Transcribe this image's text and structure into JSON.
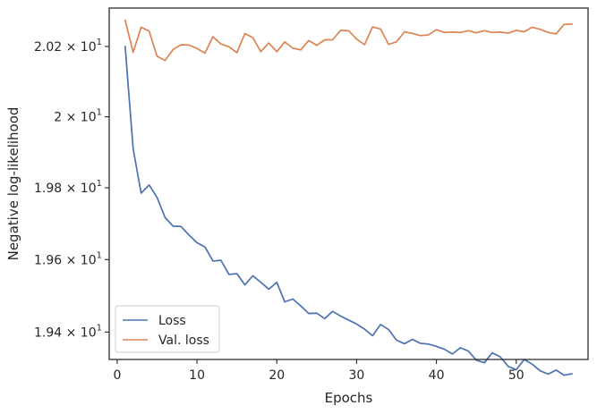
{
  "chart_data": {
    "type": "line",
    "xlabel": "Epochs",
    "ylabel": "Negative log-likelihood",
    "xlim": [
      -1,
      59
    ],
    "ylim": [
      19.325,
      20.31
    ],
    "yscale": "log",
    "grid": false,
    "legend_position": "lower-left",
    "x_ticks": [
      0,
      10,
      20,
      30,
      40,
      50
    ],
    "y_ticks": [
      {
        "value": 19.4,
        "mantissa": "1.94",
        "base": "10",
        "exp": "1"
      },
      {
        "value": 19.6,
        "mantissa": "1.96",
        "base": "10",
        "exp": "1"
      },
      {
        "value": 19.8,
        "mantissa": "1.98",
        "base": "10",
        "exp": "1"
      },
      {
        "value": 20.0,
        "mantissa": "2",
        "base": "10",
        "exp": "1"
      },
      {
        "value": 20.2,
        "mantissa": "2.02",
        "base": "10",
        "exp": "1"
      }
    ],
    "x": [
      1,
      2,
      3,
      4,
      5,
      6,
      7,
      8,
      9,
      10,
      11,
      12,
      13,
      14,
      15,
      16,
      17,
      18,
      19,
      20,
      21,
      22,
      23,
      24,
      25,
      26,
      27,
      28,
      29,
      30,
      31,
      32,
      33,
      34,
      35,
      36,
      37,
      38,
      39,
      40,
      41,
      42,
      43,
      44,
      45,
      46,
      47,
      48,
      49,
      50,
      51,
      52,
      53,
      54,
      55,
      56,
      57
    ],
    "series": [
      {
        "name": "Loss",
        "color": "#4c72b0",
        "values": [
          20.2,
          19.91,
          19.785,
          19.808,
          19.773,
          19.717,
          19.693,
          19.692,
          19.668,
          19.647,
          19.635,
          19.596,
          19.598,
          19.559,
          19.561,
          19.53,
          19.555,
          19.537,
          19.518,
          19.537,
          19.483,
          19.491,
          19.472,
          19.451,
          19.452,
          19.437,
          19.457,
          19.444,
          19.433,
          19.422,
          19.408,
          19.39,
          19.421,
          19.407,
          19.378,
          19.368,
          19.38,
          19.369,
          19.367,
          19.361,
          19.353,
          19.34,
          19.357,
          19.348,
          19.323,
          19.316,
          19.343,
          19.332,
          19.306,
          19.297,
          19.325,
          19.312,
          19.294,
          19.285,
          19.296,
          19.282,
          19.286
        ]
      },
      {
        "name": "Val. loss",
        "color": "#dd8452",
        "values": [
          20.275,
          20.183,
          20.255,
          20.244,
          20.172,
          20.16,
          20.191,
          20.205,
          20.204,
          20.194,
          20.181,
          20.228,
          20.207,
          20.199,
          20.182,
          20.237,
          20.225,
          20.185,
          20.21,
          20.185,
          20.213,
          20.195,
          20.19,
          20.217,
          20.203,
          20.219,
          20.219,
          20.246,
          20.245,
          20.221,
          20.205,
          20.256,
          20.25,
          20.206,
          20.213,
          20.242,
          20.237,
          20.231,
          20.233,
          20.248,
          20.24,
          20.241,
          20.24,
          20.245,
          20.239,
          20.245,
          20.24,
          20.241,
          20.238,
          20.246,
          20.242,
          20.255,
          20.249,
          20.24,
          20.236,
          20.263,
          20.264
        ]
      }
    ]
  }
}
